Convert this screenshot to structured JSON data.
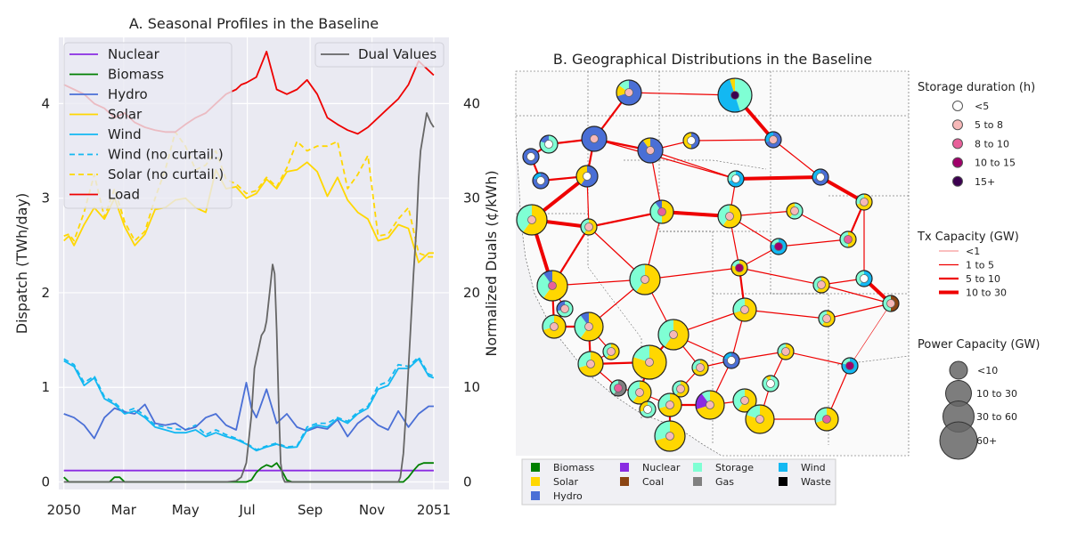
{
  "chart_data": [
    {
      "type": "line",
      "title": "A. Seasonal Profiles in the Baseline",
      "ylabel": "Dispatch (TWh/day)",
      "y2label": "Normalized Duals (¢/kWh)",
      "x_tick_labels": [
        "2050",
        "Mar",
        "May",
        "Jul",
        "Sep",
        "Nov",
        "2051"
      ],
      "x_tick_days": [
        0,
        59,
        120,
        181,
        243,
        304,
        365
      ],
      "ylim": [
        -0.08,
        4.7
      ],
      "yticks": [
        0,
        1,
        2,
        3,
        4
      ],
      "y2lim": [
        -0.8,
        47
      ],
      "y2ticks": [
        0,
        10,
        20,
        30,
        40
      ],
      "grid": true,
      "legend_left_placement": "top-left",
      "legend_right_placement": "top-right",
      "colors": {
        "Nuclear": "#8a2be2",
        "Biomass": "#008000",
        "Hydro": "#4a6fd6",
        "Solar": "#ffd700",
        "Wind": "#13b8f2",
        "Wind (no curtail.)": "#13b8f2",
        "Solar (no curtail.)": "#ffd700",
        "Load": "#ee0000",
        "Dual Values": "#666666"
      },
      "series": [
        {
          "name": "Nuclear",
          "axis": "left",
          "style": "solid",
          "x": [
            0,
            365
          ],
          "y": [
            0.12,
            0.12
          ]
        },
        {
          "name": "Biomass",
          "axis": "left",
          "style": "solid",
          "x": [
            0,
            5,
            10,
            45,
            50,
            55,
            60,
            180,
            185,
            190,
            195,
            200,
            205,
            210,
            215,
            220,
            225,
            335,
            340,
            345,
            350,
            355,
            365
          ],
          "y": [
            0.05,
            0.0,
            0.0,
            0.0,
            0.05,
            0.05,
            0.0,
            0.0,
            0.02,
            0.1,
            0.15,
            0.18,
            0.16,
            0.2,
            0.12,
            0.02,
            0.0,
            0.0,
            0.05,
            0.12,
            0.18,
            0.2,
            0.2
          ]
        },
        {
          "name": "Hydro",
          "axis": "left",
          "style": "solid",
          "x": [
            0,
            10,
            20,
            30,
            40,
            50,
            60,
            70,
            80,
            90,
            100,
            110,
            120,
            130,
            140,
            150,
            160,
            170,
            180,
            185,
            190,
            200,
            210,
            220,
            230,
            240,
            250,
            260,
            270,
            280,
            290,
            300,
            310,
            320,
            330,
            340,
            350,
            360,
            365
          ],
          "y": [
            0.72,
            0.68,
            0.6,
            0.46,
            0.68,
            0.78,
            0.74,
            0.72,
            0.82,
            0.62,
            0.6,
            0.62,
            0.55,
            0.58,
            0.68,
            0.72,
            0.6,
            0.55,
            1.05,
            0.78,
            0.68,
            0.98,
            0.62,
            0.72,
            0.58,
            0.54,
            0.58,
            0.56,
            0.66,
            0.48,
            0.62,
            0.7,
            0.6,
            0.55,
            0.75,
            0.58,
            0.72,
            0.8,
            0.8
          ]
        },
        {
          "name": "Solar",
          "axis": "left",
          "style": "solid",
          "x": [
            0,
            5,
            10,
            20,
            30,
            40,
            50,
            60,
            70,
            80,
            90,
            100,
            110,
            120,
            130,
            140,
            150,
            160,
            170,
            180,
            190,
            200,
            210,
            220,
            230,
            240,
            250,
            260,
            270,
            280,
            290,
            300,
            310,
            320,
            330,
            340,
            350,
            360,
            365
          ],
          "y": [
            2.55,
            2.6,
            2.5,
            2.72,
            2.9,
            2.78,
            3.0,
            2.7,
            2.5,
            2.62,
            2.88,
            2.9,
            2.98,
            3.0,
            2.9,
            2.85,
            3.3,
            3.1,
            3.12,
            3.0,
            3.05,
            3.2,
            3.1,
            3.28,
            3.3,
            3.38,
            3.28,
            3.02,
            3.22,
            2.98,
            2.85,
            2.78,
            2.55,
            2.58,
            2.72,
            2.68,
            2.32,
            2.42,
            2.42
          ]
        },
        {
          "name": "Wind",
          "axis": "left",
          "style": "solid",
          "x": [
            0,
            10,
            20,
            30,
            40,
            50,
            60,
            70,
            80,
            90,
            100,
            110,
            120,
            130,
            140,
            150,
            160,
            170,
            180,
            190,
            200,
            210,
            220,
            230,
            240,
            250,
            260,
            270,
            280,
            290,
            300,
            310,
            320,
            330,
            340,
            350,
            360,
            365
          ],
          "y": [
            1.28,
            1.22,
            1.02,
            1.1,
            0.88,
            0.82,
            0.72,
            0.75,
            0.68,
            0.58,
            0.55,
            0.52,
            0.52,
            0.55,
            0.48,
            0.52,
            0.48,
            0.45,
            0.4,
            0.33,
            0.37,
            0.4,
            0.36,
            0.37,
            0.55,
            0.6,
            0.58,
            0.67,
            0.62,
            0.72,
            0.78,
            0.98,
            1.02,
            1.2,
            1.2,
            1.3,
            1.12,
            1.1
          ]
        },
        {
          "name": "Wind (no curtail.)",
          "axis": "left",
          "style": "dashed",
          "x": [
            0,
            10,
            20,
            30,
            40,
            50,
            60,
            70,
            80,
            90,
            100,
            110,
            120,
            130,
            140,
            150,
            160,
            170,
            180,
            190,
            200,
            210,
            220,
            230,
            240,
            250,
            260,
            270,
            280,
            290,
            300,
            310,
            320,
            330,
            340,
            350,
            360,
            365
          ],
          "y": [
            1.3,
            1.24,
            1.05,
            1.12,
            0.9,
            0.84,
            0.74,
            0.78,
            0.7,
            0.6,
            0.58,
            0.56,
            0.55,
            0.6,
            0.5,
            0.55,
            0.5,
            0.46,
            0.41,
            0.34,
            0.38,
            0.41,
            0.37,
            0.38,
            0.58,
            0.62,
            0.62,
            0.68,
            0.64,
            0.74,
            0.8,
            1.02,
            1.06,
            1.24,
            1.22,
            1.32,
            1.14,
            1.12
          ]
        },
        {
          "name": "Solar (no curtail.)",
          "axis": "left",
          "style": "dashed",
          "x": [
            0,
            5,
            10,
            20,
            30,
            40,
            50,
            60,
            70,
            80,
            90,
            100,
            110,
            120,
            130,
            140,
            150,
            160,
            170,
            180,
            190,
            200,
            210,
            220,
            230,
            240,
            250,
            260,
            270,
            280,
            290,
            300,
            310,
            320,
            330,
            340,
            350,
            360,
            365
          ],
          "y": [
            2.6,
            2.62,
            2.55,
            2.85,
            3.25,
            2.8,
            3.1,
            2.75,
            2.55,
            2.65,
            3.0,
            3.3,
            3.7,
            3.55,
            3.3,
            3.35,
            3.5,
            3.2,
            3.15,
            3.05,
            3.08,
            3.22,
            3.12,
            3.32,
            3.6,
            3.5,
            3.55,
            3.55,
            3.6,
            3.1,
            3.25,
            3.45,
            2.6,
            2.62,
            2.78,
            2.9,
            2.42,
            2.38,
            2.38
          ]
        },
        {
          "name": "Load",
          "axis": "left",
          "style": "solid",
          "x": [
            0,
            10,
            20,
            30,
            40,
            50,
            60,
            70,
            80,
            90,
            100,
            110,
            120,
            130,
            140,
            150,
            160,
            170,
            175,
            180,
            190,
            200,
            210,
            220,
            230,
            240,
            250,
            260,
            270,
            280,
            290,
            300,
            310,
            320,
            330,
            340,
            350,
            360,
            365
          ],
          "y": [
            4.2,
            4.15,
            4.1,
            4.0,
            3.95,
            3.85,
            3.9,
            3.8,
            3.75,
            3.72,
            3.7,
            3.7,
            3.78,
            3.85,
            3.9,
            4.0,
            4.1,
            4.15,
            4.2,
            4.22,
            4.28,
            4.55,
            4.15,
            4.1,
            4.15,
            4.25,
            4.1,
            3.85,
            3.78,
            3.72,
            3.68,
            3.75,
            3.85,
            3.95,
            4.05,
            4.2,
            4.45,
            4.35,
            4.3
          ]
        },
        {
          "name": "Dual Values",
          "axis": "right",
          "style": "solid",
          "x": [
            0,
            160,
            170,
            175,
            180,
            185,
            188,
            190,
            192,
            195,
            198,
            200,
            202,
            204,
            206,
            208,
            210,
            212,
            214,
            216,
            218,
            220,
            330,
            332,
            335,
            338,
            340,
            342,
            345,
            348,
            350,
            352,
            355,
            358,
            360,
            362,
            365
          ],
          "y": [
            0,
            0,
            0.1,
            0.5,
            2,
            7,
            12,
            13,
            14,
            15.5,
            16,
            17,
            19,
            21,
            23,
            22,
            16,
            8,
            2,
            0.5,
            0,
            0,
            0,
            0.5,
            3,
            8,
            12,
            16,
            22,
            27,
            32,
            35,
            37,
            39,
            38.5,
            38,
            37.5
          ]
        }
      ]
    },
    {
      "type": "map",
      "title": "B. Geographical Distributions in the Baseline",
      "legend_storage_title": "Storage duration (h)",
      "legend_storage": [
        {
          "label": "<5",
          "color": "#ffffff"
        },
        {
          "label": "5 to 8",
          "color": "#f6b8b8"
        },
        {
          "label": "8 to 10",
          "color": "#e8609a"
        },
        {
          "label": "10 to 15",
          "color": "#a0006a"
        },
        {
          "label": "15+",
          "color": "#3c0050"
        }
      ],
      "legend_tx_title": "Tx Capacity (GW)",
      "legend_tx": [
        "<1",
        "1 to 5",
        "5 to 10",
        "10 to 30"
      ],
      "legend_power_title": "Power Capacity (GW)",
      "legend_power": [
        "<10",
        "10 to 30",
        "30 to 60",
        "60+"
      ],
      "fuel_legend": [
        {
          "label": "Biomass",
          "color": "#008000"
        },
        {
          "label": "Solar",
          "color": "#ffd700"
        },
        {
          "label": "Nuclear",
          "color": "#8a2be2"
        },
        {
          "label": "Coal",
          "color": "#8b4513"
        },
        {
          "label": "Storage",
          "color": "#7fffd4"
        },
        {
          "label": "Gas",
          "color": "#808080"
        },
        {
          "label": "Wind",
          "color": "#13b8f2"
        },
        {
          "label": "Waste",
          "color": "#000000"
        },
        {
          "label": "Hydro",
          "color": "#4a6fd6"
        }
      ]
    }
  ]
}
